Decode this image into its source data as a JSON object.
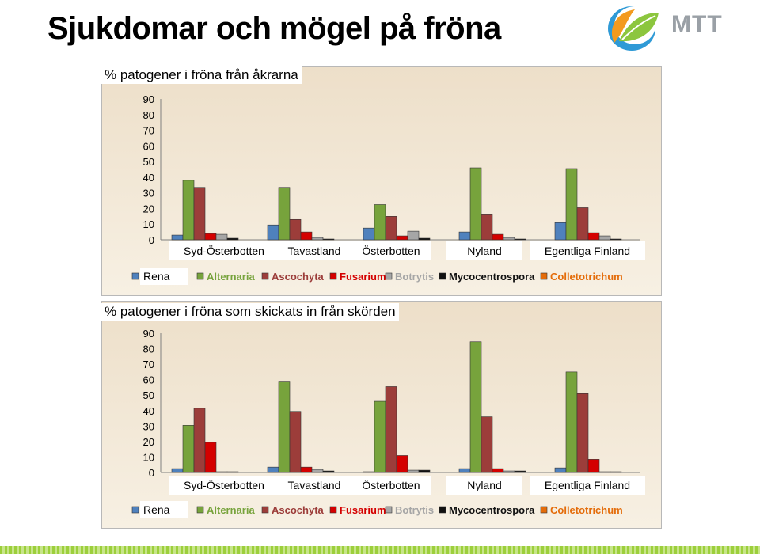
{
  "title": "Sjukdomar och mögel på fröna",
  "logo": {
    "text": "MTT"
  },
  "colors": {
    "Rena": "#4f81bd",
    "Alternaria": "#77a33c",
    "Ascochyta": "#9c3d3a",
    "Fusarium": "#d40000",
    "Botrytis": "#a6a6a6",
    "Mycocentrospora": "#111111",
    "Colletotrichum": "#e46c0a"
  },
  "chart_data": [
    {
      "type": "bar",
      "title": "% patogener i fröna från åkrarna",
      "categories": [
        "Syd-Österbotten",
        "Tavastland",
        "Österbotten",
        "Nyland",
        "Egentliga Finland"
      ],
      "ylim": [
        0,
        90
      ],
      "yticks": [
        0,
        10,
        20,
        30,
        40,
        50,
        60,
        70,
        80,
        90
      ],
      "legend_position": "bottom",
      "series": [
        {
          "name": "Rena",
          "values": [
            3,
            9.5,
            7.5,
            5,
            11
          ]
        },
        {
          "name": "Alternaria",
          "values": [
            38,
            33.5,
            22.5,
            46,
            45.5
          ]
        },
        {
          "name": "Ascochyta",
          "values": [
            33.5,
            13,
            15,
            16,
            20.5
          ]
        },
        {
          "name": "Fusarium",
          "values": [
            4,
            5,
            2.5,
            3.5,
            4.5
          ]
        },
        {
          "name": "Botrytis",
          "values": [
            3.5,
            1.5,
            5.5,
            1.5,
            2.5
          ]
        },
        {
          "name": "Mycocentrospora",
          "values": [
            1,
            0.5,
            1,
            0.5,
            0.5
          ]
        },
        {
          "name": "Colletotrichum",
          "values": [
            0,
            0,
            0,
            0,
            0
          ]
        }
      ]
    },
    {
      "type": "bar",
      "title": "% patogener i fröna som skickats in från skörden",
      "categories": [
        "Syd-Österbotten",
        "Tavastland",
        "Österbotten",
        "Nyland",
        "Egentliga Finland"
      ],
      "ylim": [
        0,
        90
      ],
      "yticks": [
        0,
        10,
        20,
        30,
        40,
        50,
        60,
        70,
        80,
        90
      ],
      "legend_position": "bottom",
      "series": [
        {
          "name": "Rena",
          "values": [
            2.5,
            3.5,
            0.5,
            2.5,
            3
          ]
        },
        {
          "name": "Alternaria",
          "values": [
            30.5,
            58.5,
            46,
            84.5,
            65
          ]
        },
        {
          "name": "Ascochyta",
          "values": [
            41.5,
            39.5,
            55.5,
            36,
            51
          ]
        },
        {
          "name": "Fusarium",
          "values": [
            19.5,
            3.5,
            11,
            2.5,
            8.5
          ]
        },
        {
          "name": "Botrytis",
          "values": [
            0.5,
            2,
            1.5,
            1,
            0.5
          ]
        },
        {
          "name": "Mycocentrospora",
          "values": [
            0.5,
            1,
            1.5,
            1,
            0.5
          ]
        },
        {
          "name": "Colletotrichum",
          "values": [
            0,
            0,
            0,
            0,
            0
          ]
        }
      ]
    }
  ]
}
